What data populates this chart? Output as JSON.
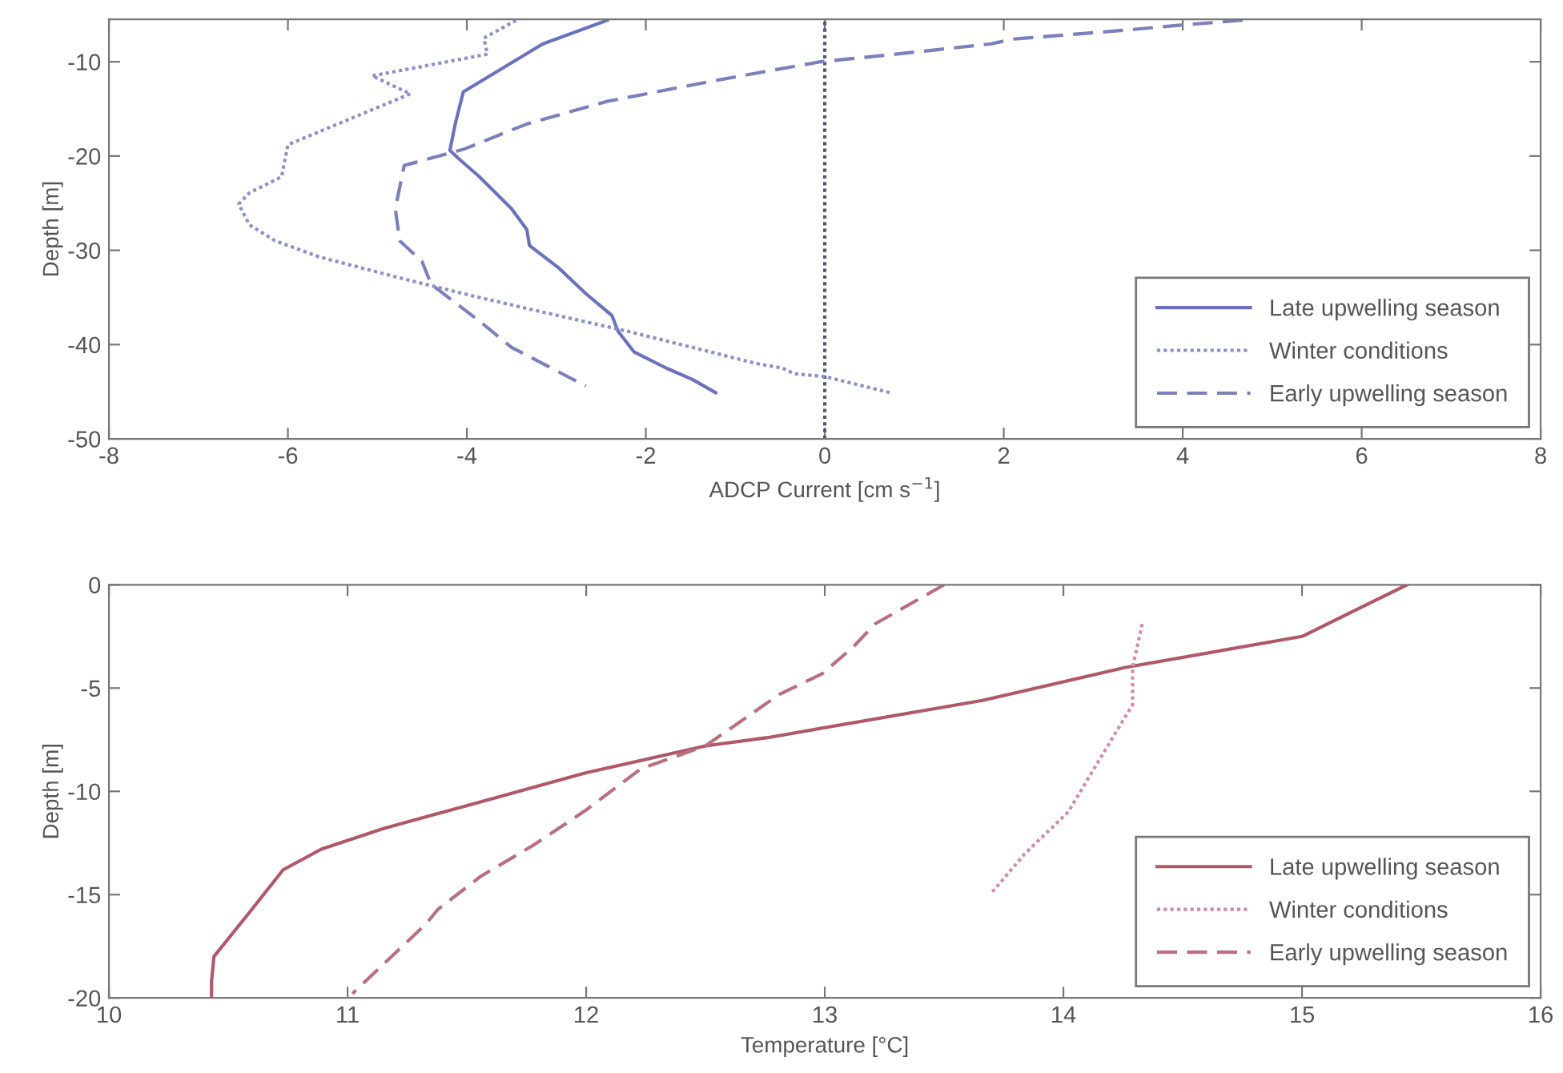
{
  "chart_data": [
    {
      "type": "line",
      "xlabel": "ADCP Current [cm s$^{−1}$]",
      "ylabel": "Depth [m]",
      "xlim": [
        -8,
        8
      ],
      "xticks": [
        -8,
        -6,
        -4,
        -2,
        0,
        2,
        4,
        6,
        8
      ],
      "ylim": [
        -50,
        -5.5
      ],
      "yticks": [
        -50,
        -40,
        -30,
        -20,
        -10
      ],
      "legend": "lower right",
      "ref_lines": [
        {
          "axis": "x",
          "value": 0,
          "color": "#55557a",
          "line_style": "dotted"
        }
      ],
      "series": [
        {
          "name": "Late upwelling season",
          "color": "#6a72bc",
          "line_style": "solid",
          "x": [
            -2.43,
            -3.15,
            -4.04,
            -4.13,
            -4.19,
            -4.1,
            -3.86,
            -3.5,
            -3.33,
            -3.3,
            -2.97,
            -2.67,
            -2.38,
            -2.31,
            -2.13,
            -1.77,
            -1.48,
            -1.22
          ],
          "values": [
            -5.6,
            -8.1,
            -13.2,
            -16.6,
            -19.4,
            -20.2,
            -22.2,
            -25.6,
            -27.8,
            -29.5,
            -31.9,
            -34.6,
            -36.9,
            -38.6,
            -40.8,
            -42.5,
            -43.7,
            -45.1
          ]
        },
        {
          "name": "Winter conditions",
          "color": "#8a90c8",
          "line_style": "dotted",
          "x": [
            -3.45,
            -3.81,
            -3.77,
            -5.06,
            -4.63,
            -6.0,
            -6.07,
            -6.43,
            -6.55,
            -6.43,
            -6.14,
            -5.65,
            -4.76,
            -4.04,
            -3.27,
            -2.2,
            -1.48,
            -0.77,
            -0.47,
            -0.34,
            0.0,
            0.73
          ],
          "values": [
            -5.6,
            -7.5,
            -9.2,
            -11.5,
            -13.4,
            -18.8,
            -22.2,
            -23.9,
            -25.1,
            -27.3,
            -29.0,
            -30.7,
            -32.9,
            -34.6,
            -36.3,
            -38.6,
            -40.3,
            -42.0,
            -42.5,
            -43.1,
            -43.4,
            -45.1
          ]
        },
        {
          "name": "Early upwelling season",
          "color": "#7a80bc",
          "line_style": "dashed",
          "x": [
            4.67,
            4.0,
            3.17,
            2.1,
            1.86,
            0.79,
            -0.05,
            -1.23,
            -2.43,
            -3.33,
            -4.04,
            -4.7,
            -4.8,
            -4.75,
            -4.5,
            -4.4,
            -3.86,
            -3.5,
            -2.67
          ],
          "values": [
            -5.6,
            -6.1,
            -6.8,
            -7.6,
            -8.1,
            -9.2,
            -10.0,
            -12.0,
            -14.2,
            -16.6,
            -19.3,
            -21.0,
            -25.6,
            -29.0,
            -31.2,
            -33.6,
            -37.5,
            -40.3,
            -44.4
          ]
        }
      ]
    },
    {
      "type": "line",
      "xlabel": "Temperature [°C]",
      "ylabel": "Depth [m]",
      "xlim": [
        10,
        16
      ],
      "xticks": [
        10,
        11,
        12,
        13,
        14,
        15,
        16
      ],
      "ylim": [
        -20,
        0
      ],
      "yticks": [
        -20,
        -15,
        -10,
        -5,
        0
      ],
      "legend": "lower right",
      "series": [
        {
          "name": "Late upwelling season",
          "color": "#b05868",
          "line_style": "solid",
          "x": [
            15.44,
            15.0,
            14.26,
            13.66,
            12.76,
            12.5,
            12.0,
            11.56,
            11.15,
            10.89,
            10.73,
            10.6,
            10.44,
            10.43,
            10.43
          ],
          "values": [
            0,
            -2.5,
            -4.0,
            -5.6,
            -7.4,
            -7.8,
            -9.1,
            -10.5,
            -11.8,
            -12.8,
            -13.8,
            -15.7,
            -18.0,
            -19.2,
            -20
          ]
        },
        {
          "name": "Winter conditions",
          "color": "#d08aa8",
          "line_style": "dotted",
          "x": [
            14.33,
            14.29,
            14.29,
            14.17,
            14.02,
            13.84,
            13.7
          ],
          "values": [
            -1.9,
            -4.0,
            -5.8,
            -8.1,
            -11.0,
            -13.0,
            -14.9
          ]
        },
        {
          "name": "Early upwelling season",
          "color": "#b87080",
          "line_style": "dashed",
          "x": [
            13.5,
            13.21,
            13.12,
            12.99,
            12.81,
            12.5,
            12.23,
            12.0,
            11.78,
            11.56,
            11.38,
            11.33,
            11.02
          ],
          "values": [
            0,
            -1.9,
            -3.0,
            -4.3,
            -5.3,
            -7.8,
            -8.9,
            -10.9,
            -12.6,
            -14.1,
            -15.7,
            -16.4,
            -19.8
          ]
        }
      ]
    }
  ]
}
